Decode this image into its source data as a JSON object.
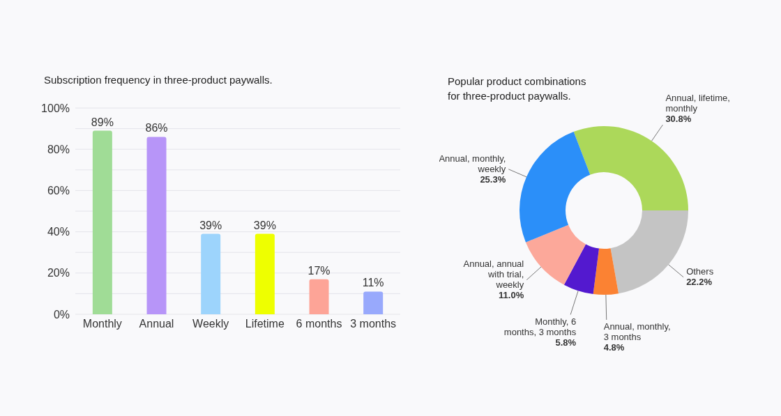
{
  "chart_data": [
    {
      "type": "bar",
      "title": "Subscription frequency in three-product paywalls.",
      "categories": [
        "Monthly",
        "Annual",
        "Weekly",
        "Lifetime",
        "6 months",
        "3 months"
      ],
      "values": [
        89,
        86,
        39,
        39,
        17,
        11
      ],
      "colors": [
        "#a0dc96",
        "#b795f8",
        "#9dd4fc",
        "#eeff00",
        "#fda497",
        "#98a9fc"
      ],
      "value_labels": [
        "89%",
        "86%",
        "39%",
        "39%",
        "17%",
        "11%"
      ],
      "ylim": [
        0,
        100
      ],
      "yticks": [
        {
          "value": 0,
          "label": "0%"
        },
        {
          "value": 10,
          "label": null
        },
        {
          "value": 20,
          "label": "20%"
        },
        {
          "value": 30,
          "label": null
        },
        {
          "value": 40,
          "label": "40%"
        },
        {
          "value": 50,
          "label": null
        },
        {
          "value": 60,
          "label": "60%"
        },
        {
          "value": 70,
          "label": null
        },
        {
          "value": 80,
          "label": "80%"
        },
        {
          "value": 90,
          "label": null
        },
        {
          "value": 100,
          "label": "100%"
        }
      ],
      "grid": "y"
    },
    {
      "type": "donut",
      "title": "Popular product combinations\nfor three-product paywalls.",
      "categories": [
        "Annual, lifetime, monthly",
        "Others",
        "Annual, monthly, 3 months",
        "Monthly, 6 months, 3 months",
        "Annual, annual with trial, weekly",
        "Annual, monthly, weekly"
      ],
      "values": [
        30.8,
        22.2,
        4.8,
        5.8,
        11.0,
        25.3
      ],
      "colors": [
        "#acd85a",
        "#c4c4c4",
        "#fb8233",
        "#5319cf",
        "#fca89a",
        "#2b8ff9"
      ],
      "value_labels": [
        "30.8%",
        "22.2%",
        "4.8%",
        "5.8%",
        "11.0%",
        "25.3%"
      ]
    }
  ]
}
